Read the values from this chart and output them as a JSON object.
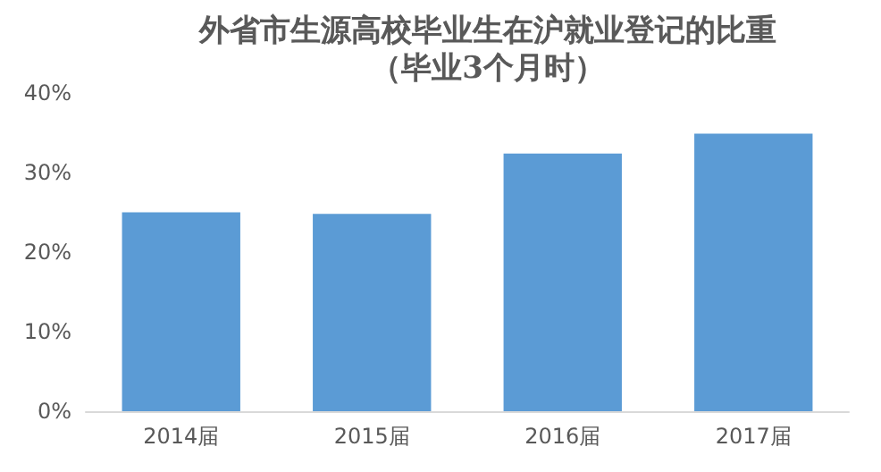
{
  "chart_data": {
    "type": "bar",
    "title": "外省市生源高校毕业生在沪就业登记的比重",
    "subtitle": "（毕业3个月时）",
    "categories": [
      "2014届",
      "2015届",
      "2016届",
      "2017届"
    ],
    "values": [
      25.0,
      24.8,
      32.4,
      34.9
    ],
    "color": "#5b9bd5",
    "ylim": [
      0,
      40
    ],
    "yticks": [
      {
        "value": 0,
        "label": "0%"
      },
      {
        "value": 10,
        "label": "10%"
      },
      {
        "value": 20,
        "label": "20%"
      },
      {
        "value": 30,
        "label": "30%"
      },
      {
        "value": 40,
        "label": "40%"
      }
    ],
    "grid": false
  }
}
